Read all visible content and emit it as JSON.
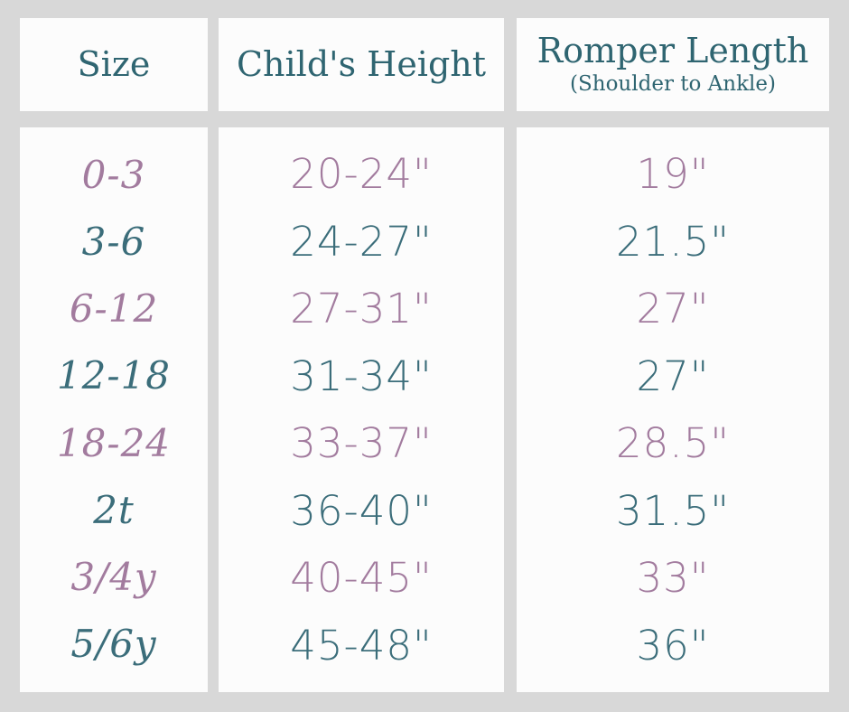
{
  "page": {
    "background_color": "#d8d8d8",
    "card_color": "#fcfcfc",
    "teal": "#3b6d7a",
    "mauve": "#a27b9e"
  },
  "chart_data": {
    "type": "table",
    "columns": [
      {
        "header": "Size",
        "subheader": "",
        "values": [
          "0-3",
          "3-6",
          "6-12",
          "12-18",
          "18-24",
          "2t",
          "3/4y",
          "5/6y"
        ]
      },
      {
        "header": "Child's Height",
        "subheader": "",
        "values": [
          "20-24\"",
          "24-27\"",
          "27-31\"",
          "31-34\"",
          "33-37\"",
          "36-40\"",
          "40-45\"",
          "45-48\""
        ]
      },
      {
        "header": "Romper Length",
        "subheader": "(Shoulder to Ankle)",
        "values": [
          "19\"",
          "21.5\"",
          "27\"",
          "27\"",
          "28.5\"",
          "31.5\"",
          "33\"",
          "36\""
        ]
      }
    ],
    "row_text_colors": [
      "#a27b9e",
      "#3b6d7a",
      "#a27b9e",
      "#3b6d7a",
      "#a27b9e",
      "#3b6d7a",
      "#a27b9e",
      "#3b6d7a"
    ],
    "layout": {
      "legend": "none",
      "grid": "separated-cards"
    }
  }
}
